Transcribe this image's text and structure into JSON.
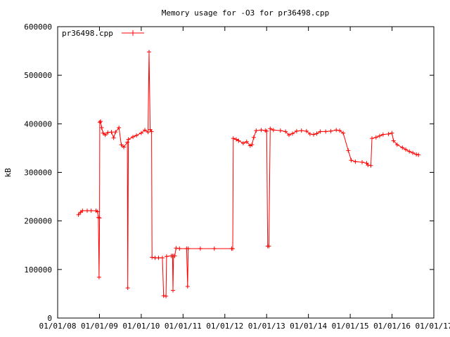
{
  "chart_data": {
    "type": "line",
    "title": "Memory usage for -O3 for pr36498.cpp",
    "xlabel": "",
    "ylabel": "kB",
    "ylim": [
      0,
      600000
    ],
    "yticks": [
      "0",
      "100000",
      "200000",
      "300000",
      "400000",
      "500000",
      "600000"
    ],
    "xticks": [
      "01/01/08",
      "01/01/09",
      "01/01/10",
      "01/01/11",
      "01/01/12",
      "01/01/13",
      "01/01/14",
      "01/01/15",
      "01/01/16",
      "01/01/17"
    ],
    "xlim": [
      "2008-01-01",
      "2017-01-01"
    ],
    "grid": false,
    "legend_position": "top-left",
    "line_color": "#ff0000",
    "series": [
      {
        "name": "pr36498.cpp",
        "points": [
          [
            "2008-07-01",
            213000
          ],
          [
            "2008-07-20",
            218000
          ],
          [
            "2008-08-05",
            221000
          ],
          [
            "2008-09-15",
            221000
          ],
          [
            "2008-10-20",
            221000
          ],
          [
            "2008-12-01",
            221000
          ],
          [
            "2008-12-15",
            219000
          ],
          [
            "2008-12-22",
            207000
          ],
          [
            "2008-12-28",
            84000
          ],
          [
            "2009-01-01",
            206000
          ],
          [
            "2009-01-03",
            403000
          ],
          [
            "2009-01-10",
            405000
          ],
          [
            "2009-01-20",
            392000
          ],
          [
            "2009-02-01",
            381000
          ],
          [
            "2009-02-20",
            377000
          ],
          [
            "2009-03-15",
            382000
          ],
          [
            "2009-04-15",
            383000
          ],
          [
            "2009-05-05",
            371000
          ],
          [
            "2009-05-20",
            383000
          ],
          [
            "2009-06-20",
            392000
          ],
          [
            "2009-07-10",
            357000
          ],
          [
            "2009-08-01",
            352000
          ],
          [
            "2009-09-01",
            362000
          ],
          [
            "2009-09-05",
            62000
          ],
          [
            "2009-09-10",
            368000
          ],
          [
            "2009-10-20",
            373000
          ],
          [
            "2009-11-20",
            376000
          ],
          [
            "2010-01-01",
            381000
          ],
          [
            "2010-02-01",
            387000
          ],
          [
            "2010-03-01",
            383000
          ],
          [
            "2010-03-10",
            548000
          ],
          [
            "2010-03-20",
            388000
          ],
          [
            "2010-04-01",
            384000
          ],
          [
            "2010-04-05",
            125000
          ],
          [
            "2010-05-01",
            124000
          ],
          [
            "2010-06-01",
            124000
          ],
          [
            "2010-07-05",
            124000
          ],
          [
            "2010-07-15",
            46000
          ],
          [
            "2010-08-05",
            45000
          ],
          [
            "2010-08-10",
            127000
          ],
          [
            "2010-09-20",
            128000
          ],
          [
            "2010-10-01",
            128000
          ],
          [
            "2010-10-05",
            57000
          ],
          [
            "2010-10-10",
            128000
          ],
          [
            "2010-10-20",
            128000
          ],
          [
            "2010-11-01",
            144000
          ],
          [
            "2010-12-01",
            143000
          ],
          [
            "2011-02-01",
            143000
          ],
          [
            "2011-02-10",
            65000
          ],
          [
            "2011-02-15",
            143000
          ],
          [
            "2011-06-01",
            143000
          ],
          [
            "2011-10-01",
            143000
          ],
          [
            "2012-03-01",
            143000
          ],
          [
            "2012-03-10",
            143000
          ],
          [
            "2012-03-15",
            370000
          ],
          [
            "2012-04-10",
            368000
          ],
          [
            "2012-05-01",
            365000
          ],
          [
            "2012-06-10",
            360000
          ],
          [
            "2012-07-10",
            363000
          ],
          [
            "2012-08-10",
            355000
          ],
          [
            "2012-08-25",
            357000
          ],
          [
            "2012-09-10",
            372000
          ],
          [
            "2012-10-01",
            386000
          ],
          [
            "2012-11-15",
            387000
          ],
          [
            "2012-12-20",
            386000
          ],
          [
            "2013-01-01",
            385000
          ],
          [
            "2013-01-10",
            148000
          ],
          [
            "2013-01-20",
            148000
          ],
          [
            "2013-02-01",
            390000
          ],
          [
            "2013-03-01",
            387000
          ],
          [
            "2013-05-01",
            386000
          ],
          [
            "2013-06-15",
            384000
          ],
          [
            "2013-07-15",
            377000
          ],
          [
            "2013-08-15",
            380000
          ],
          [
            "2013-09-20",
            385000
          ],
          [
            "2013-11-01",
            386000
          ],
          [
            "2013-12-15",
            385000
          ],
          [
            "2014-01-15",
            379000
          ],
          [
            "2014-02-15",
            378000
          ],
          [
            "2014-03-15",
            380000
          ],
          [
            "2014-04-15",
            384000
          ],
          [
            "2014-06-01",
            384000
          ],
          [
            "2014-07-15",
            385000
          ],
          [
            "2014-09-01",
            387000
          ],
          [
            "2014-10-01",
            386000
          ],
          [
            "2014-11-01",
            381000
          ],
          [
            "2014-12-15",
            345000
          ],
          [
            "2015-01-10",
            325000
          ],
          [
            "2015-02-15",
            322000
          ],
          [
            "2015-04-15",
            321000
          ],
          [
            "2015-05-25",
            319000
          ],
          [
            "2015-06-05",
            315000
          ],
          [
            "2015-07-01",
            314000
          ],
          [
            "2015-07-10",
            370000
          ],
          [
            "2015-08-15",
            372000
          ],
          [
            "2015-09-15",
            375000
          ],
          [
            "2015-10-15",
            378000
          ],
          [
            "2015-12-01",
            379000
          ],
          [
            "2016-01-01",
            381000
          ],
          [
            "2016-01-15",
            365000
          ],
          [
            "2016-02-15",
            357000
          ],
          [
            "2016-04-01",
            351000
          ],
          [
            "2016-05-01",
            347000
          ],
          [
            "2016-06-01",
            343000
          ],
          [
            "2016-07-01",
            340000
          ],
          [
            "2016-08-01",
            337000
          ],
          [
            "2016-08-20",
            336000
          ]
        ]
      }
    ]
  }
}
